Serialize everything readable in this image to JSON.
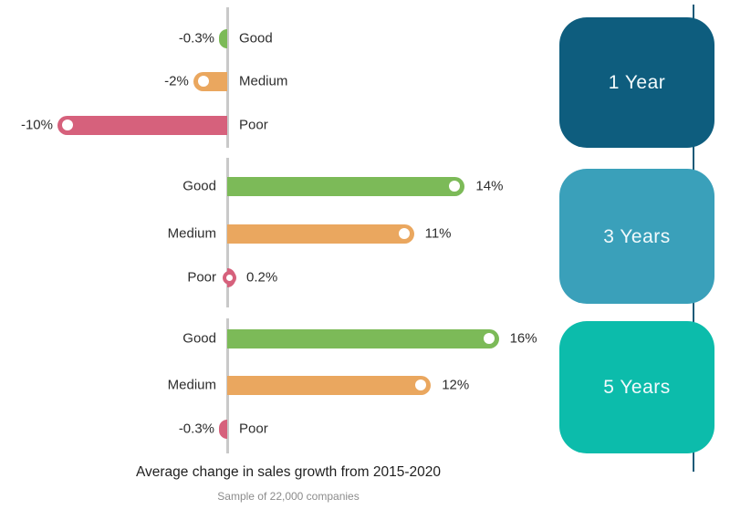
{
  "chart_data": {
    "type": "bar",
    "orientation": "horizontal",
    "title": "Average change in sales growth from 2015-2020",
    "subtitle": "Sample of 22,000 companies",
    "unit": "%",
    "categories": [
      "Good",
      "Medium",
      "Poor"
    ],
    "category_colors": {
      "Good": "#7cba58",
      "Medium": "#eaa75f",
      "Poor": "#d6617c"
    },
    "groups": [
      {
        "label": "1 Year",
        "badge_color": "#0e5d7e",
        "rows": [
          {
            "category": "Good",
            "value": -0.3,
            "value_label": "-0.3%",
            "marker": false
          },
          {
            "category": "Medium",
            "value": -2,
            "value_label": "-2%",
            "marker": true
          },
          {
            "category": "Poor",
            "value": -10,
            "value_label": "-10%",
            "marker": true
          }
        ]
      },
      {
        "label": "3 Years",
        "badge_color": "#3aa0ba",
        "rows": [
          {
            "category": "Good",
            "value": 14,
            "value_label": "14%",
            "marker": true
          },
          {
            "category": "Medium",
            "value": 11,
            "value_label": "11%",
            "marker": true
          },
          {
            "category": "Poor",
            "value": 0.2,
            "value_label": "0.2%",
            "marker": true
          }
        ]
      },
      {
        "label": "5 Years",
        "badge_color": "#0cbcab",
        "rows": [
          {
            "category": "Good",
            "value": 16,
            "value_label": "16%",
            "marker": true
          },
          {
            "category": "Medium",
            "value": 12,
            "value_label": "12%",
            "marker": true
          },
          {
            "category": "Poor",
            "value": -0.3,
            "value_label": "-0.3%",
            "marker": false
          }
        ]
      }
    ],
    "axis": {
      "baseline_color": "#c9c9c9",
      "connector_color": "#1b5a78",
      "grid": false,
      "value_axis_visible": false
    },
    "text_colors": {
      "label": "#2d2d2d",
      "title": "#1f1f1f",
      "subtitle": "#8c8c8c",
      "badge_text": "#f2fafc"
    }
  }
}
